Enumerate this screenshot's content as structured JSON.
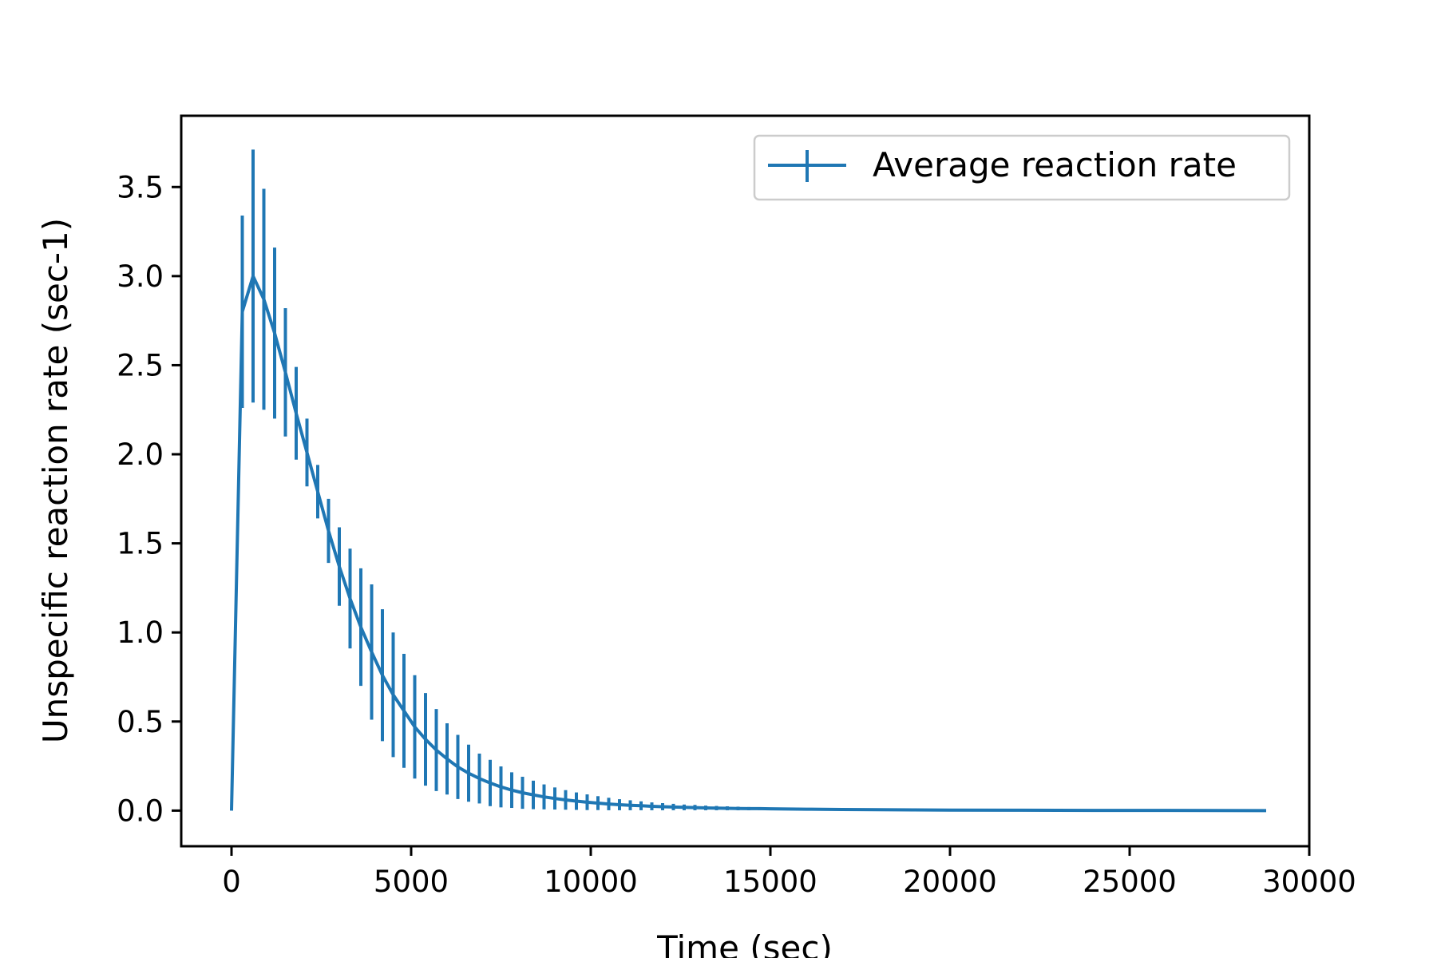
{
  "chart_data": {
    "type": "line",
    "title": "",
    "xlabel": "Time (sec)",
    "ylabel": "Unspecific reaction rate (sec-1)",
    "xlim": [
      -1400,
      30000
    ],
    "ylim": [
      -0.2,
      3.9
    ],
    "xticks": [
      0,
      5000,
      10000,
      15000,
      20000,
      25000,
      30000
    ],
    "yticks": [
      0.0,
      0.5,
      1.0,
      1.5,
      2.0,
      2.5,
      3.0,
      3.5
    ],
    "xtick_labels": [
      "0",
      "5000",
      "10000",
      "15000",
      "20000",
      "25000",
      "30000"
    ],
    "ytick_labels": [
      "0.0",
      "0.5",
      "1.0",
      "1.5",
      "2.0",
      "2.5",
      "3.0",
      "3.5"
    ],
    "grid": false,
    "legend": {
      "position": "top-right",
      "entries": [
        "Average reaction rate"
      ]
    },
    "series": [
      {
        "name": "Average reaction rate",
        "color": "#1f77b4",
        "error_bars": true,
        "x": [
          0,
          300,
          600,
          900,
          1200,
          1500,
          1800,
          2100,
          2400,
          2700,
          3000,
          3300,
          3600,
          3900,
          4200,
          4500,
          4800,
          5100,
          5400,
          5700,
          6000,
          6300,
          6600,
          6900,
          7200,
          7500,
          7800,
          8100,
          8400,
          8700,
          9000,
          9300,
          9600,
          9900,
          10200,
          10500,
          10800,
          11100,
          11400,
          11700,
          12000,
          12300,
          12600,
          12900,
          13200,
          13500,
          13800,
          14100,
          14400,
          14700,
          15000,
          16000,
          17000,
          18000,
          19000,
          20000,
          22000,
          24000,
          26000,
          28800
        ],
        "y": [
          0.0,
          2.8,
          3.0,
          2.87,
          2.68,
          2.46,
          2.23,
          2.01,
          1.79,
          1.57,
          1.37,
          1.19,
          1.03,
          0.89,
          0.76,
          0.65,
          0.56,
          0.47,
          0.4,
          0.34,
          0.29,
          0.245,
          0.21,
          0.18,
          0.155,
          0.133,
          0.115,
          0.1,
          0.088,
          0.077,
          0.068,
          0.06,
          0.053,
          0.047,
          0.042,
          0.037,
          0.033,
          0.03,
          0.027,
          0.024,
          0.022,
          0.02,
          0.018,
          0.017,
          0.015,
          0.014,
          0.013,
          0.012,
          0.011,
          0.011,
          0.01,
          0.008,
          0.006,
          0.005,
          0.004,
          0.003,
          0.002,
          0.001,
          0.001,
          0.0
        ],
        "yerr": [
          0.0,
          0.54,
          0.71,
          0.62,
          0.48,
          0.36,
          0.26,
          0.19,
          0.15,
          0.18,
          0.22,
          0.28,
          0.33,
          0.38,
          0.37,
          0.35,
          0.32,
          0.29,
          0.26,
          0.23,
          0.2,
          0.18,
          0.16,
          0.14,
          0.13,
          0.115,
          0.1,
          0.09,
          0.08,
          0.07,
          0.062,
          0.055,
          0.049,
          0.044,
          0.039,
          0.035,
          0.031,
          0.028,
          0.025,
          0.022,
          0.02,
          0.018,
          0.016,
          0.015,
          0.013,
          0.012,
          0.011,
          0.01,
          0.009,
          0.008,
          0.007,
          null,
          null,
          null,
          null,
          null,
          null,
          null,
          null,
          null
        ]
      }
    ]
  }
}
